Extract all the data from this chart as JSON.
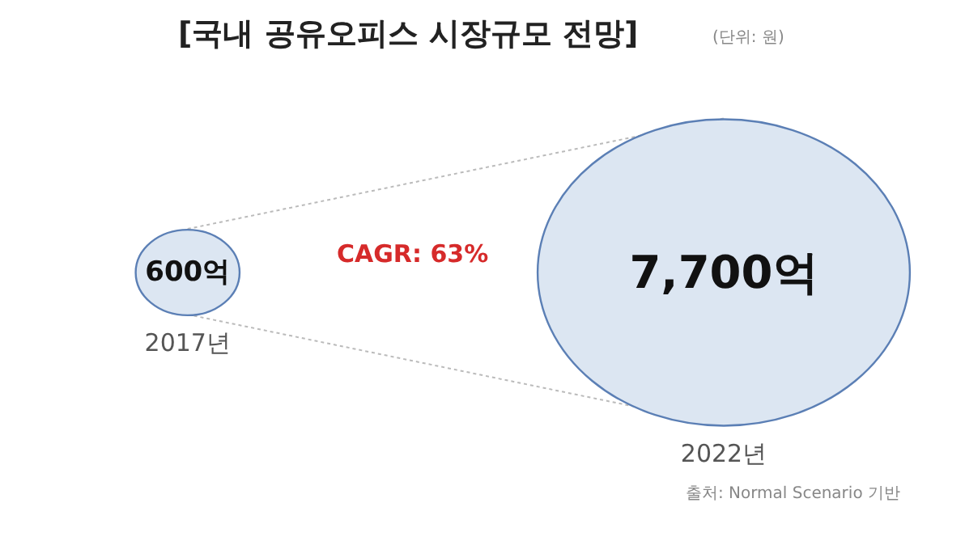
{
  "chart_data": {
    "type": "other",
    "title": "[국내 공유오피스 시장규모 전망]",
    "categories": [
      "2017년",
      "2022년"
    ],
    "values": [
      600,
      7700
    ],
    "value_labels": [
      "600억",
      "7,700억"
    ],
    "color": "#dce6f2",
    "annotations": [
      "CAGR: 63%",
      "(단위: 원)",
      "출처: Normal Scenario 기반"
    ]
  }
}
